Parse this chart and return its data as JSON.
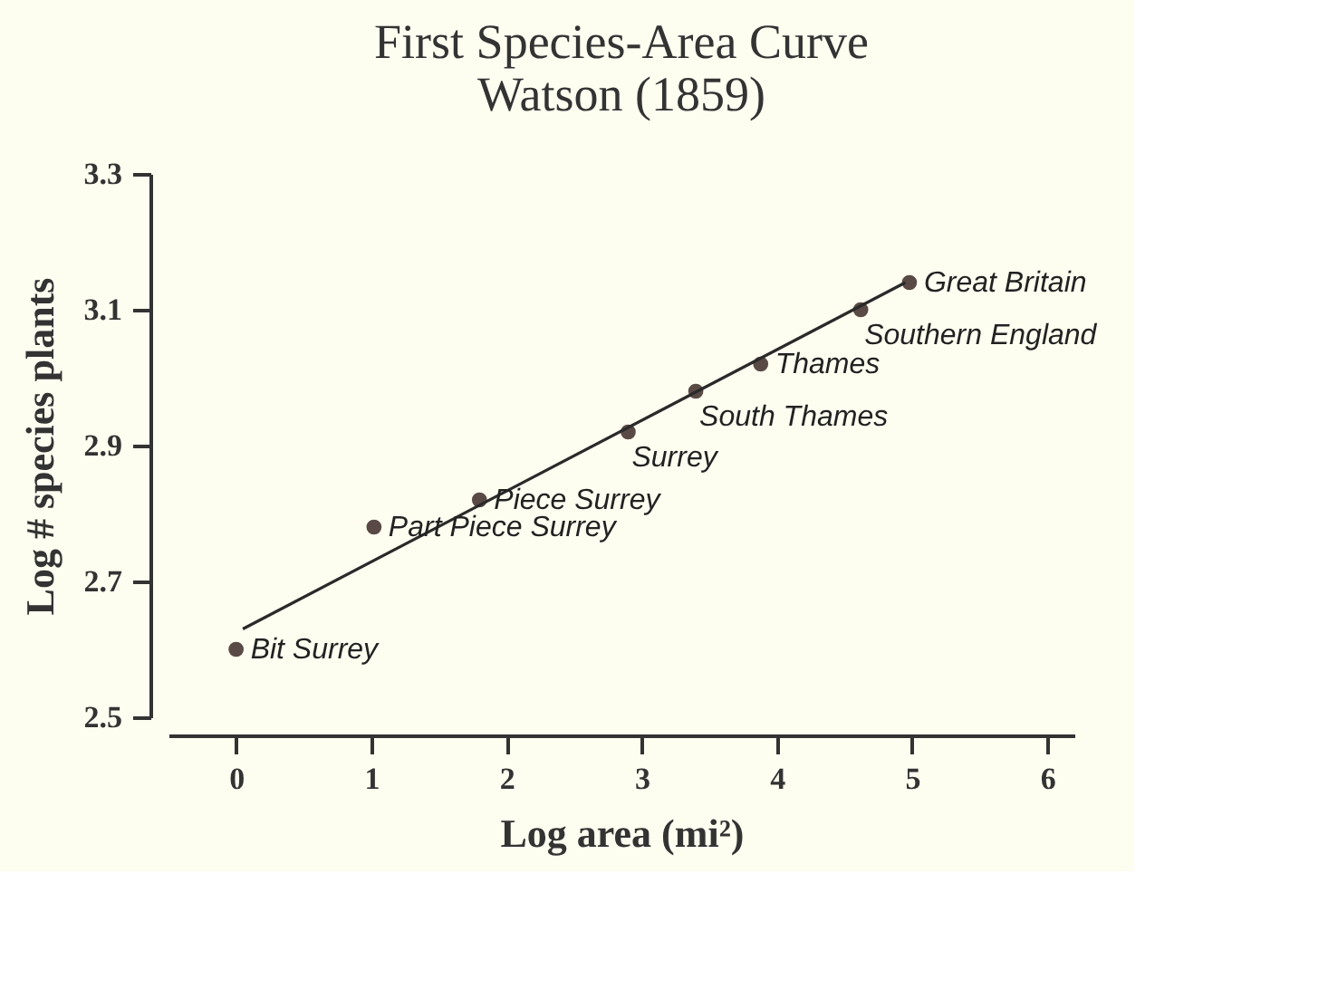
{
  "chart_data": {
    "type": "scatter",
    "title": "First Species-Area Curve",
    "subtitle": "Watson (1859)",
    "xlabel": "Log area (mi²)",
    "ylabel": "Log # species plants",
    "x": [
      0,
      1.02,
      1.8,
      2.9,
      3.4,
      3.88,
      4.62,
      4.98
    ],
    "series": [
      {
        "color": "#5a4a45",
        "marker": "circle",
        "values": [
          2.6,
          2.78,
          2.82,
          2.92,
          2.98,
          3.02,
          3.1,
          3.14
        ]
      },
      {
        "type": "line",
        "color": "#2a2a2a",
        "x": [
          0.05,
          4.95
        ],
        "values": [
          2.63,
          3.14
        ],
        "marker": "none",
        "line_style": "solid"
      }
    ],
    "annotations": [
      {
        "text": "Bit Surrey",
        "x": 0,
        "y": 2.6
      },
      {
        "text": "Part Piece Surrey",
        "x": 1.02,
        "y": 2.78
      },
      {
        "text": "Piece Surrey",
        "x": 1.8,
        "y": 2.82
      },
      {
        "text": "Surrey",
        "x": 2.9,
        "y": 2.92
      },
      {
        "text": "South Thames",
        "x": 3.4,
        "y": 2.98
      },
      {
        "text": "Thames",
        "x": 3.88,
        "y": 3.02
      },
      {
        "text": "Southern England",
        "x": 4.62,
        "y": 3.1
      },
      {
        "text": "Great Britain",
        "x": 4.98,
        "y": 3.14
      }
    ],
    "xlim": [
      -0.5,
      6.2
    ],
    "xticks": [
      0,
      1,
      2,
      3,
      4,
      5,
      6
    ],
    "ylim": [
      2.5,
      3.3
    ],
    "yticks": [
      2.5,
      2.7,
      2.9,
      3.1,
      3.3
    ],
    "grid": false
  }
}
